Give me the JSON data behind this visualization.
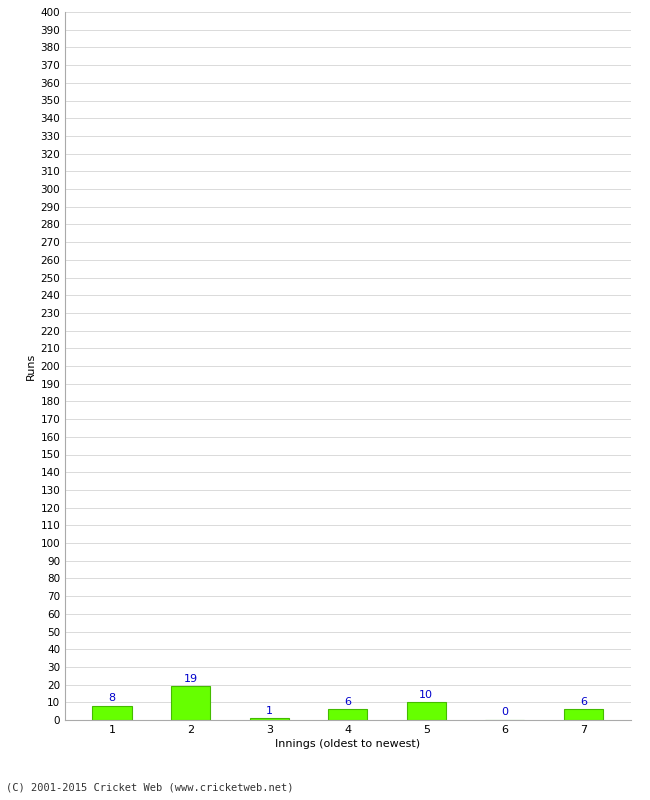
{
  "xlabel": "Innings (oldest to newest)",
  "ylabel": "Runs",
  "categories": [
    "1",
    "2",
    "3",
    "4",
    "5",
    "6",
    "7"
  ],
  "values": [
    8,
    19,
    1,
    6,
    10,
    0,
    6
  ],
  "bar_color": "#66ff00",
  "bar_edge_color": "#44bb00",
  "label_color": "#0000cc",
  "ylim": [
    0,
    400
  ],
  "ytick_step": 10,
  "background_color": "#ffffff",
  "grid_color": "#cccccc",
  "footer": "(C) 2001-2015 Cricket Web (www.cricketweb.net)"
}
